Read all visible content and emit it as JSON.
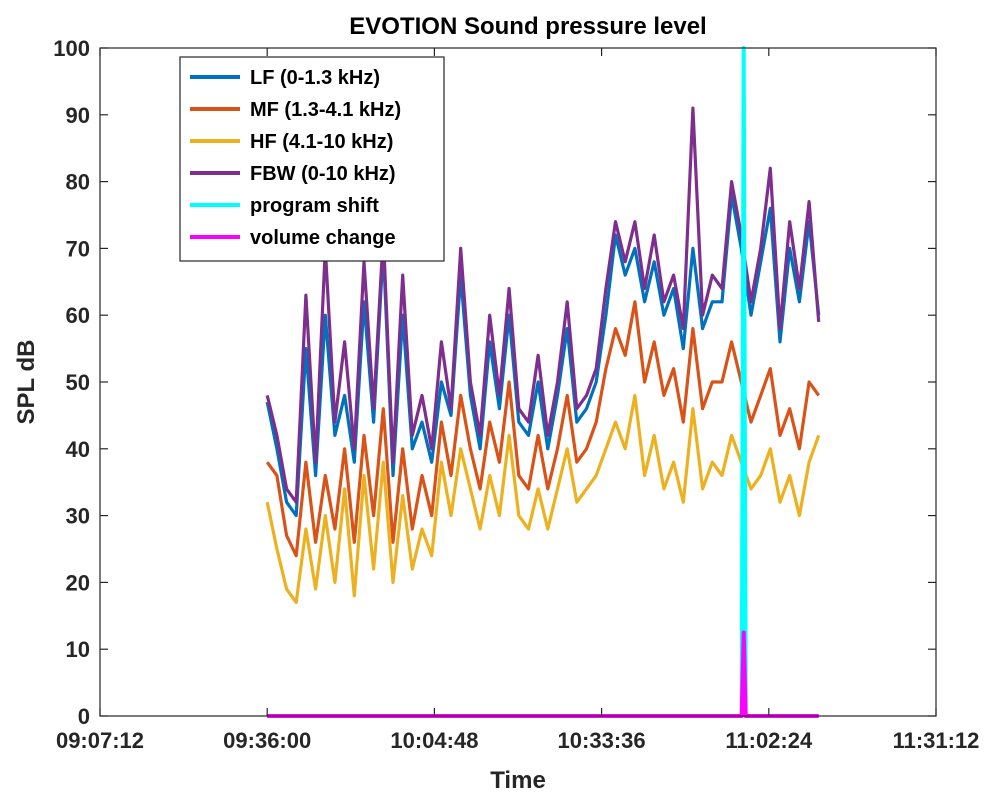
{
  "chart_data": {
    "type": "line",
    "title": "EVOTION Sound pressure level",
    "xlabel": "Time",
    "ylabel": "SPL dB",
    "xlim": [
      "09:07:12",
      "11:31:12"
    ],
    "ylim": [
      0,
      100
    ],
    "xticks": [
      "09:07:12",
      "09:36:00",
      "10:04:48",
      "10:33:36",
      "11:02:24",
      "11:31:12"
    ],
    "yticks": [
      "0",
      "10",
      "20",
      "30",
      "40",
      "50",
      "60",
      "70",
      "80",
      "90",
      "100"
    ],
    "grid": false,
    "legend_position": "top-left",
    "x": [
      "09:36:00",
      "09:37:40",
      "09:39:20",
      "09:41:00",
      "09:42:40",
      "09:44:20",
      "09:46:00",
      "09:47:40",
      "09:49:20",
      "09:51:00",
      "09:52:40",
      "09:54:20",
      "09:56:00",
      "09:57:40",
      "09:59:20",
      "10:01:00",
      "10:02:40",
      "10:04:20",
      "10:06:00",
      "10:07:40",
      "10:09:20",
      "10:11:00",
      "10:12:40",
      "10:14:20",
      "10:16:00",
      "10:17:40",
      "10:19:20",
      "10:21:00",
      "10:22:40",
      "10:24:20",
      "10:26:00",
      "10:27:40",
      "10:29:20",
      "10:31:00",
      "10:32:40",
      "10:34:20",
      "10:36:00",
      "10:37:40",
      "10:39:20",
      "10:41:00",
      "10:42:40",
      "10:44:20",
      "10:46:00",
      "10:47:40",
      "10:49:20",
      "10:51:00",
      "10:52:40",
      "10:54:20",
      "10:56:00",
      "10:57:40",
      "10:59:20",
      "11:01:00",
      "11:02:40",
      "11:04:20",
      "11:06:00",
      "11:07:40",
      "11:09:20",
      "11:11:00"
    ],
    "series": [
      {
        "name": "LF (0-1.3 kHz)",
        "color": "#0072BD",
        "values": [
          47,
          40,
          32,
          30,
          55,
          36,
          60,
          42,
          48,
          38,
          62,
          44,
          70,
          36,
          60,
          40,
          44,
          38,
          50,
          45,
          66,
          48,
          40,
          56,
          46,
          60,
          44,
          42,
          50,
          40,
          48,
          58,
          44,
          46,
          50,
          60,
          72,
          66,
          70,
          62,
          68,
          60,
          64,
          55,
          70,
          58,
          62,
          62,
          78,
          70,
          60,
          68,
          76,
          56,
          70,
          62,
          74,
          60
        ]
      },
      {
        "name": "MF (1.3-4.1 kHz)",
        "color": "#D95319",
        "values": [
          38,
          36,
          27,
          24,
          38,
          26,
          36,
          28,
          40,
          26,
          42,
          30,
          46,
          26,
          40,
          28,
          36,
          30,
          44,
          36,
          48,
          40,
          34,
          44,
          38,
          50,
          36,
          34,
          42,
          34,
          40,
          48,
          38,
          40,
          44,
          52,
          58,
          54,
          62,
          50,
          56,
          48,
          52,
          44,
          58,
          46,
          50,
          50,
          56,
          50,
          44,
          48,
          52,
          42,
          46,
          40,
          50,
          48
        ]
      },
      {
        "name": "HF (4.1-10 kHz)",
        "color": "#EDB120",
        "values": [
          32,
          25,
          19,
          17,
          28,
          19,
          30,
          20,
          34,
          18,
          36,
          22,
          38,
          20,
          33,
          22,
          28,
          24,
          38,
          30,
          40,
          34,
          28,
          36,
          30,
          42,
          30,
          28,
          34,
          28,
          34,
          40,
          32,
          34,
          36,
          40,
          44,
          40,
          48,
          36,
          42,
          34,
          38,
          32,
          46,
          34,
          38,
          36,
          42,
          38,
          34,
          36,
          40,
          32,
          36,
          30,
          38,
          42
        ]
      },
      {
        "name": "FBW (0-10 kHz)",
        "color": "#7E2F8E",
        "values": [
          48,
          42,
          34,
          32,
          63,
          38,
          70,
          44,
          56,
          40,
          68,
          46,
          72,
          38,
          66,
          42,
          48,
          40,
          56,
          46,
          70,
          50,
          42,
          60,
          48,
          64,
          46,
          44,
          54,
          42,
          50,
          62,
          46,
          48,
          52,
          64,
          74,
          68,
          74,
          64,
          72,
          62,
          66,
          58,
          91,
          60,
          66,
          64,
          80,
          72,
          62,
          70,
          82,
          58,
          74,
          64,
          77,
          59
        ]
      },
      {
        "name": "program shift",
        "color": "#00FFFF",
        "values": [
          0,
          0,
          0,
          0,
          0,
          0,
          0,
          0,
          0,
          0,
          0,
          0,
          0,
          0,
          0,
          0,
          0,
          0,
          0,
          0,
          0,
          0,
          0,
          0,
          0,
          0,
          0,
          0,
          0,
          0,
          0,
          0,
          0,
          0,
          0,
          0,
          0,
          0,
          0,
          0,
          0,
          0,
          0,
          0,
          0,
          0,
          0,
          0,
          0,
          0,
          0,
          0,
          0,
          0,
          0,
          0,
          0,
          0
        ],
        "spike": {
          "x": "10:58:05",
          "value": 100
        }
      },
      {
        "name": "volume change",
        "color": "#FF00FF",
        "values": [
          0,
          0,
          0,
          0,
          0,
          0,
          0,
          0,
          0,
          0,
          0,
          0,
          0,
          0,
          0,
          0,
          0,
          0,
          0,
          0,
          0,
          0,
          0,
          0,
          0,
          0,
          0,
          0,
          0,
          0,
          0,
          0,
          0,
          0,
          0,
          0,
          0,
          0,
          0,
          0,
          0,
          0,
          0,
          0,
          0,
          0,
          0,
          0,
          0,
          0,
          0,
          0,
          0,
          0,
          0,
          0,
          0,
          0
        ],
        "spike": {
          "x": "10:58:05",
          "value": 12.5
        }
      }
    ]
  }
}
